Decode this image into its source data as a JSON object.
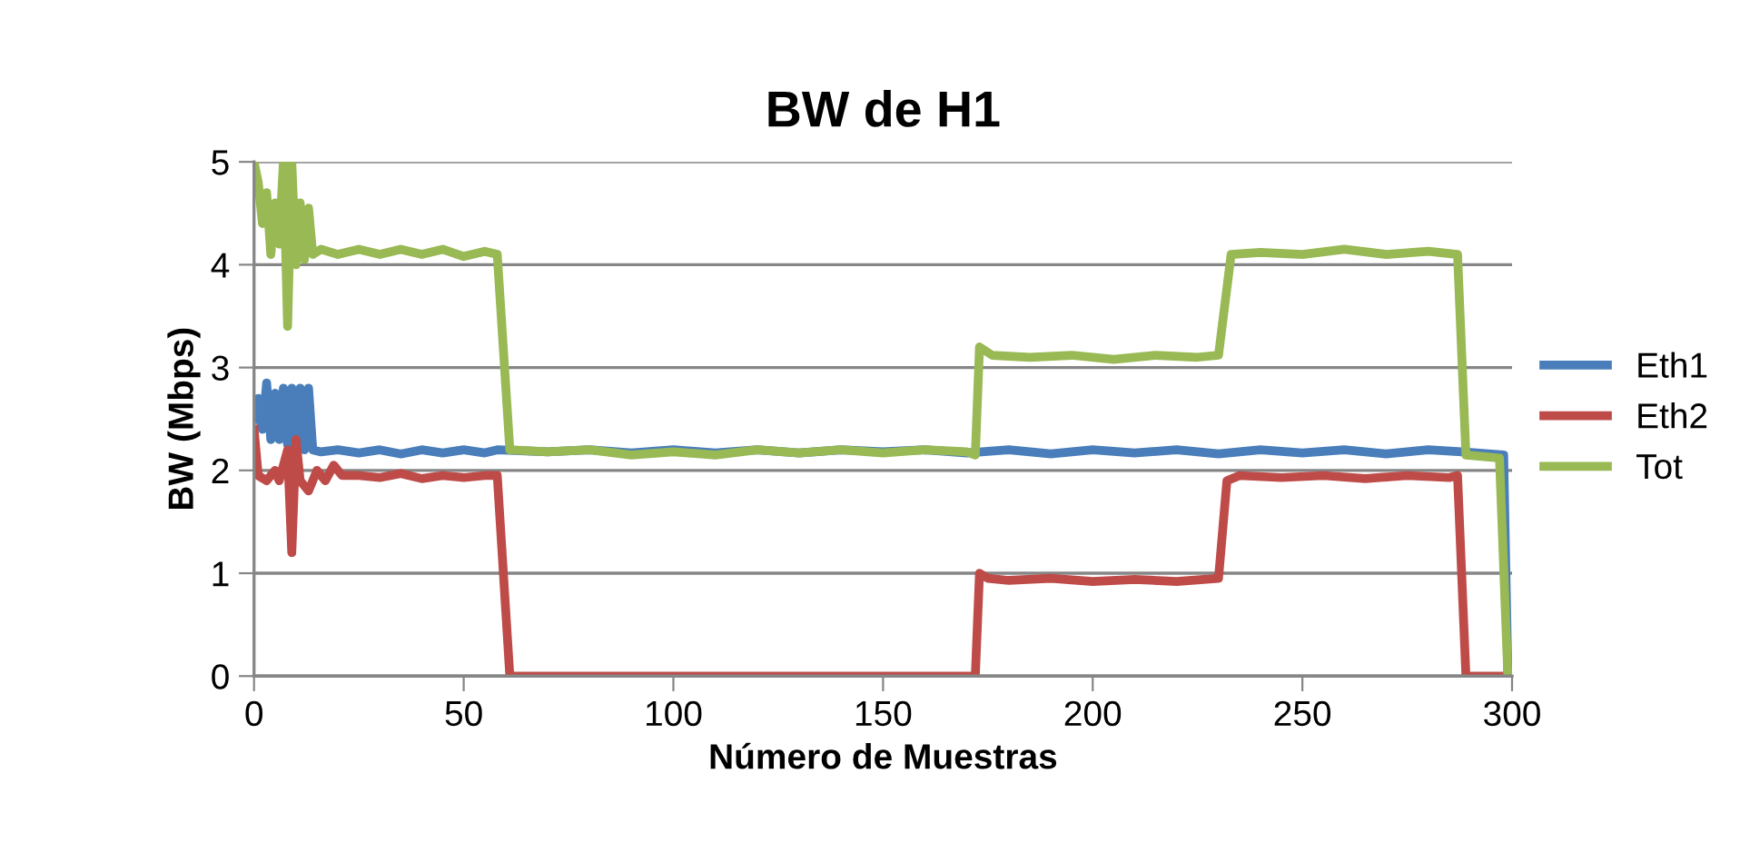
{
  "chart_data": {
    "type": "line",
    "title": "BW de H1",
    "xlabel": "Número de Muestras",
    "ylabel": "BW (Mbps)",
    "xlim": [
      0,
      300
    ],
    "xticks": [
      0,
      50,
      100,
      150,
      200,
      250,
      300
    ],
    "ylim": [
      0,
      5
    ],
    "yticks": [
      0,
      1,
      2,
      3,
      4,
      5
    ],
    "grid": "y",
    "legend": "right",
    "marker": "none",
    "line_style": "solid",
    "series": [
      {
        "name": "Eth1",
        "color": "#4a7ebb",
        "x": [
          0,
          1,
          2,
          3,
          4,
          5,
          6,
          7,
          8,
          9,
          10,
          11,
          12,
          13,
          14,
          16,
          20,
          25,
          30,
          35,
          40,
          45,
          50,
          55,
          58,
          70,
          80,
          90,
          100,
          110,
          120,
          130,
          140,
          150,
          160,
          170,
          180,
          190,
          200,
          210,
          220,
          230,
          240,
          250,
          260,
          270,
          280,
          288,
          298,
          299
        ],
        "values": [
          2.5,
          2.7,
          2.4,
          2.85,
          2.3,
          2.75,
          2.3,
          2.8,
          2.25,
          2.8,
          2.3,
          2.8,
          2.2,
          2.8,
          2.2,
          2.18,
          2.2,
          2.17,
          2.2,
          2.16,
          2.2,
          2.17,
          2.2,
          2.17,
          2.2,
          2.18,
          2.2,
          2.17,
          2.2,
          2.17,
          2.2,
          2.17,
          2.2,
          2.18,
          2.2,
          2.17,
          2.2,
          2.16,
          2.2,
          2.17,
          2.2,
          2.16,
          2.2,
          2.17,
          2.2,
          2.16,
          2.2,
          2.18,
          2.15,
          0
        ]
      },
      {
        "name": "Eth2",
        "color": "#be4b48",
        "x": [
          0,
          1,
          3,
          5,
          6,
          8,
          9,
          10,
          11,
          13,
          15,
          17,
          19,
          21,
          25,
          30,
          35,
          40,
          45,
          50,
          55,
          58,
          61,
          100,
          150,
          172,
          173,
          175,
          180,
          190,
          200,
          210,
          220,
          230,
          232,
          235,
          245,
          255,
          265,
          275,
          285,
          287,
          289,
          298,
          299
        ],
        "values": [
          2.4,
          1.95,
          1.9,
          2.0,
          1.9,
          2.2,
          1.2,
          2.3,
          1.9,
          1.8,
          2.0,
          1.9,
          2.05,
          1.95,
          1.95,
          1.93,
          1.97,
          1.92,
          1.95,
          1.93,
          1.95,
          1.95,
          0,
          0,
          0,
          0,
          1.0,
          0.95,
          0.93,
          0.95,
          0.92,
          0.94,
          0.92,
          0.95,
          1.9,
          1.95,
          1.93,
          1.95,
          1.92,
          1.95,
          1.93,
          1.95,
          0,
          0,
          0
        ]
      },
      {
        "name": "Tot",
        "color": "#98b954",
        "x": [
          0,
          1,
          2,
          3,
          4,
          5,
          6,
          7,
          8,
          9,
          10,
          11,
          12,
          13,
          14,
          16,
          20,
          25,
          30,
          35,
          40,
          45,
          50,
          55,
          58,
          61,
          70,
          80,
          90,
          100,
          110,
          120,
          130,
          140,
          150,
          160,
          170,
          172,
          173,
          176,
          185,
          195,
          205,
          215,
          225,
          230,
          233,
          240,
          250,
          260,
          270,
          280,
          287,
          289,
          297,
          299
        ],
        "values": [
          5.0,
          4.8,
          4.4,
          4.7,
          4.1,
          4.6,
          4.2,
          5.0,
          3.4,
          5.0,
          4.0,
          4.6,
          4.05,
          4.55,
          4.1,
          4.15,
          4.1,
          4.15,
          4.1,
          4.15,
          4.1,
          4.15,
          4.08,
          4.13,
          4.1,
          2.2,
          2.18,
          2.2,
          2.15,
          2.18,
          2.15,
          2.2,
          2.17,
          2.2,
          2.17,
          2.2,
          2.18,
          2.15,
          3.2,
          3.12,
          3.1,
          3.12,
          3.08,
          3.12,
          3.1,
          3.12,
          4.1,
          4.12,
          4.1,
          4.15,
          4.1,
          4.13,
          4.1,
          2.15,
          2.12,
          0
        ]
      }
    ]
  }
}
